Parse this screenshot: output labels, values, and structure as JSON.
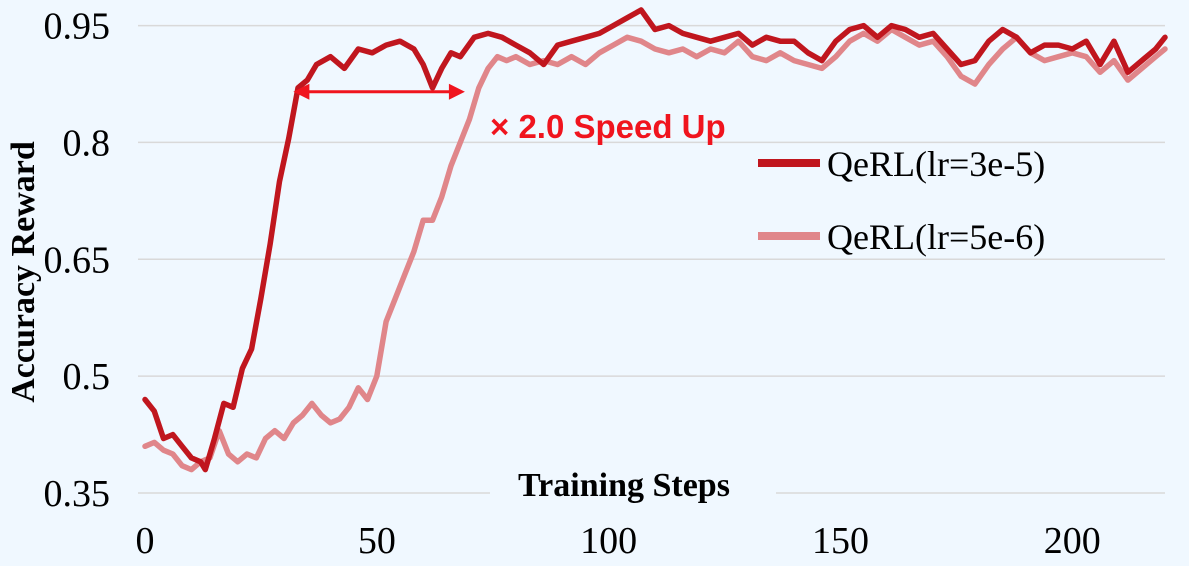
{
  "chart_data": {
    "type": "line",
    "xlabel": "Training Steps",
    "ylabel": "Accuracy Reward",
    "xlim": [
      0,
      220
    ],
    "ylim": [
      0.35,
      0.97
    ],
    "xticks": [
      0,
      50,
      100,
      150,
      200
    ],
    "xtick_labels": [
      "0",
      "50",
      "100",
      "150",
      "200"
    ],
    "yticks": [
      0.35,
      0.5,
      0.65,
      0.8,
      0.95
    ],
    "ytick_labels": [
      "0.35",
      "0.5",
      "0.65",
      "0.8",
      "0.95"
    ],
    "grid": "horizontal",
    "legend_position": "right",
    "series": [
      {
        "name": "QeRL(lr=3e-5)",
        "color": "#c0161e",
        "points": [
          [
            0,
            0.47
          ],
          [
            2,
            0.455
          ],
          [
            4,
            0.42
          ],
          [
            6,
            0.425
          ],
          [
            8,
            0.41
          ],
          [
            10,
            0.395
          ],
          [
            12,
            0.39
          ],
          [
            13,
            0.38
          ],
          [
            15,
            0.42
          ],
          [
            17,
            0.465
          ],
          [
            19,
            0.46
          ],
          [
            21,
            0.51
          ],
          [
            23,
            0.535
          ],
          [
            25,
            0.6
          ],
          [
            27,
            0.67
          ],
          [
            29,
            0.75
          ],
          [
            31,
            0.805
          ],
          [
            33,
            0.87
          ],
          [
            35,
            0.88
          ],
          [
            37,
            0.9
          ],
          [
            40,
            0.91
          ],
          [
            43,
            0.895
          ],
          [
            46,
            0.92
          ],
          [
            49,
            0.915
          ],
          [
            52,
            0.925
          ],
          [
            55,
            0.93
          ],
          [
            58,
            0.92
          ],
          [
            60,
            0.9
          ],
          [
            62,
            0.87
          ],
          [
            64,
            0.895
          ],
          [
            66,
            0.915
          ],
          [
            68,
            0.91
          ],
          [
            71,
            0.935
          ],
          [
            74,
            0.94
          ],
          [
            77,
            0.935
          ],
          [
            80,
            0.925
          ],
          [
            83,
            0.915
          ],
          [
            86,
            0.9
          ],
          [
            89,
            0.925
          ],
          [
            92,
            0.93
          ],
          [
            95,
            0.935
          ],
          [
            98,
            0.94
          ],
          [
            101,
            0.95
          ],
          [
            104,
            0.96
          ],
          [
            107,
            0.97
          ],
          [
            110,
            0.945
          ],
          [
            113,
            0.95
          ],
          [
            116,
            0.94
          ],
          [
            119,
            0.935
          ],
          [
            122,
            0.93
          ],
          [
            125,
            0.935
          ],
          [
            128,
            0.94
          ],
          [
            131,
            0.925
          ],
          [
            134,
            0.935
          ],
          [
            137,
            0.93
          ],
          [
            140,
            0.93
          ],
          [
            143,
            0.915
          ],
          [
            146,
            0.905
          ],
          [
            149,
            0.93
          ],
          [
            152,
            0.945
          ],
          [
            155,
            0.95
          ],
          [
            158,
            0.935
          ],
          [
            161,
            0.95
          ],
          [
            164,
            0.945
          ],
          [
            167,
            0.935
          ],
          [
            170,
            0.94
          ],
          [
            173,
            0.92
          ],
          [
            176,
            0.9
          ],
          [
            179,
            0.905
          ],
          [
            182,
            0.93
          ],
          [
            185,
            0.945
          ],
          [
            188,
            0.935
          ],
          [
            191,
            0.915
          ],
          [
            194,
            0.925
          ],
          [
            197,
            0.925
          ],
          [
            200,
            0.92
          ],
          [
            203,
            0.93
          ],
          [
            206,
            0.9
          ],
          [
            209,
            0.93
          ],
          [
            212,
            0.89
          ],
          [
            215,
            0.905
          ],
          [
            218,
            0.92
          ],
          [
            220,
            0.935
          ]
        ]
      },
      {
        "name": "QeRL(lr=5e-6)",
        "color": "#e0868a",
        "points": [
          [
            0,
            0.41
          ],
          [
            2,
            0.415
          ],
          [
            4,
            0.405
          ],
          [
            6,
            0.4
          ],
          [
            8,
            0.385
          ],
          [
            10,
            0.38
          ],
          [
            12,
            0.39
          ],
          [
            14,
            0.395
          ],
          [
            16,
            0.43
          ],
          [
            18,
            0.4
          ],
          [
            20,
            0.39
          ],
          [
            22,
            0.4
          ],
          [
            24,
            0.395
          ],
          [
            26,
            0.42
          ],
          [
            28,
            0.43
          ],
          [
            30,
            0.42
          ],
          [
            32,
            0.44
          ],
          [
            34,
            0.45
          ],
          [
            36,
            0.465
          ],
          [
            38,
            0.45
          ],
          [
            40,
            0.44
          ],
          [
            42,
            0.445
          ],
          [
            44,
            0.46
          ],
          [
            46,
            0.485
          ],
          [
            48,
            0.47
          ],
          [
            50,
            0.5
          ],
          [
            52,
            0.57
          ],
          [
            54,
            0.6
          ],
          [
            56,
            0.63
          ],
          [
            58,
            0.66
          ],
          [
            60,
            0.7
          ],
          [
            62,
            0.7
          ],
          [
            64,
            0.73
          ],
          [
            66,
            0.77
          ],
          [
            68,
            0.8
          ],
          [
            70,
            0.83
          ],
          [
            72,
            0.87
          ],
          [
            74,
            0.895
          ],
          [
            76,
            0.91
          ],
          [
            78,
            0.905
          ],
          [
            80,
            0.91
          ],
          [
            83,
            0.9
          ],
          [
            86,
            0.905
          ],
          [
            89,
            0.9
          ],
          [
            92,
            0.91
          ],
          [
            95,
            0.9
          ],
          [
            98,
            0.915
          ],
          [
            101,
            0.925
          ],
          [
            104,
            0.935
          ],
          [
            107,
            0.93
          ],
          [
            110,
            0.92
          ],
          [
            113,
            0.915
          ],
          [
            116,
            0.92
          ],
          [
            119,
            0.91
          ],
          [
            122,
            0.92
          ],
          [
            125,
            0.915
          ],
          [
            128,
            0.93
          ],
          [
            131,
            0.91
          ],
          [
            134,
            0.905
          ],
          [
            137,
            0.915
          ],
          [
            140,
            0.905
          ],
          [
            143,
            0.9
          ],
          [
            146,
            0.895
          ],
          [
            149,
            0.91
          ],
          [
            152,
            0.93
          ],
          [
            155,
            0.94
          ],
          [
            158,
            0.93
          ],
          [
            161,
            0.945
          ],
          [
            164,
            0.935
          ],
          [
            167,
            0.925
          ],
          [
            170,
            0.93
          ],
          [
            173,
            0.91
          ],
          [
            176,
            0.885
          ],
          [
            179,
            0.875
          ],
          [
            182,
            0.9
          ],
          [
            185,
            0.92
          ],
          [
            188,
            0.935
          ],
          [
            191,
            0.915
          ],
          [
            194,
            0.905
          ],
          [
            197,
            0.91
          ],
          [
            200,
            0.915
          ],
          [
            203,
            0.91
          ],
          [
            206,
            0.89
          ],
          [
            209,
            0.905
          ],
          [
            212,
            0.88
          ],
          [
            215,
            0.895
          ],
          [
            218,
            0.91
          ],
          [
            220,
            0.92
          ]
        ]
      }
    ],
    "annotation": {
      "text": "× 2.0 Speed Up",
      "color": "#f0141e",
      "x_start": 32,
      "x_end": 69,
      "y": 0.865
    }
  }
}
